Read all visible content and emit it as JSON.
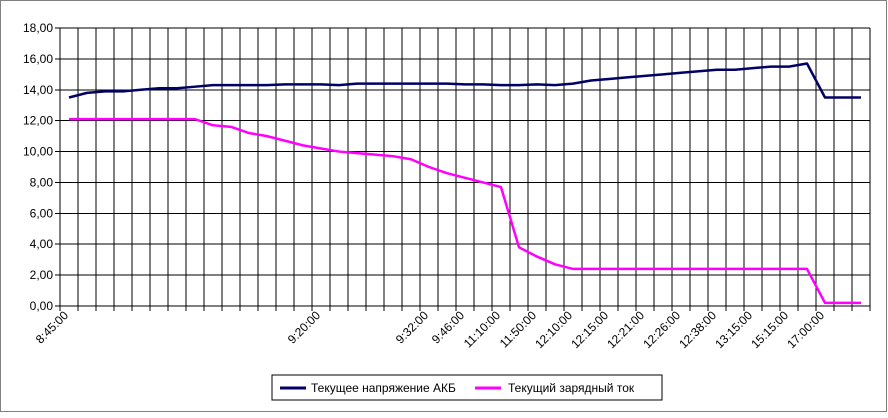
{
  "colors": {
    "background": "#ffffff",
    "plot_background": "#ffffff",
    "grid": "#000000",
    "frame": "#808080"
  },
  "chart_data": {
    "type": "line",
    "title": "",
    "xlabel": "",
    "ylabel": "",
    "ylim": [
      0,
      18
    ],
    "y_step": 2,
    "y_tick_labels": [
      "0,00",
      "2,00",
      "4,00",
      "6,00",
      "8,00",
      "10,00",
      "12,00",
      "14,00",
      "16,00",
      "18,00"
    ],
    "grid": true,
    "legend_position": "bottom",
    "x_category_count": 45,
    "x_tick_labels": [
      {
        "index": 0,
        "label": "8:45:00"
      },
      {
        "index": 14,
        "label": "9:20:00"
      },
      {
        "index": 20,
        "label": "9:32:00"
      },
      {
        "index": 22,
        "label": "9:46:00"
      },
      {
        "index": 24,
        "label": "11:10:00"
      },
      {
        "index": 26,
        "label": "11:50:00"
      },
      {
        "index": 28,
        "label": "12:10:00"
      },
      {
        "index": 30,
        "label": "12:15:00"
      },
      {
        "index": 32,
        "label": "12:21:00"
      },
      {
        "index": 34,
        "label": "12:26:00"
      },
      {
        "index": 36,
        "label": "12:38:00"
      },
      {
        "index": 38,
        "label": "13:15:00"
      },
      {
        "index": 40,
        "label": "15:15:00"
      },
      {
        "index": 42,
        "label": "17:00:00"
      }
    ],
    "series": [
      {
        "name": "Текущее напряжение АКБ",
        "color": "#000066",
        "values": [
          13.5,
          13.8,
          13.9,
          13.9,
          14.0,
          14.1,
          14.1,
          14.2,
          14.3,
          14.3,
          14.3,
          14.3,
          14.35,
          14.35,
          14.35,
          14.3,
          14.4,
          14.4,
          14.4,
          14.4,
          14.4,
          14.4,
          14.35,
          14.35,
          14.3,
          14.3,
          14.35,
          14.3,
          14.4,
          14.6,
          14.7,
          14.8,
          14.9,
          15.0,
          15.1,
          15.2,
          15.3,
          15.3,
          15.4,
          15.5,
          15.5,
          15.7,
          13.5,
          13.5,
          13.5
        ]
      },
      {
        "name": "Текущий зарядный ток",
        "color": "#ff00ff",
        "values": [
          12.1,
          12.1,
          12.1,
          12.1,
          12.1,
          12.1,
          12.1,
          12.1,
          11.7,
          11.6,
          11.2,
          11.0,
          10.7,
          10.4,
          10.2,
          10.0,
          9.9,
          9.8,
          9.7,
          9.5,
          9.0,
          8.6,
          8.3,
          8.0,
          7.7,
          3.8,
          3.2,
          2.7,
          2.4,
          2.4,
          2.4,
          2.4,
          2.4,
          2.4,
          2.4,
          2.4,
          2.4,
          2.4,
          2.4,
          2.4,
          2.4,
          2.4,
          0.2,
          0.2,
          0.2
        ]
      }
    ]
  }
}
